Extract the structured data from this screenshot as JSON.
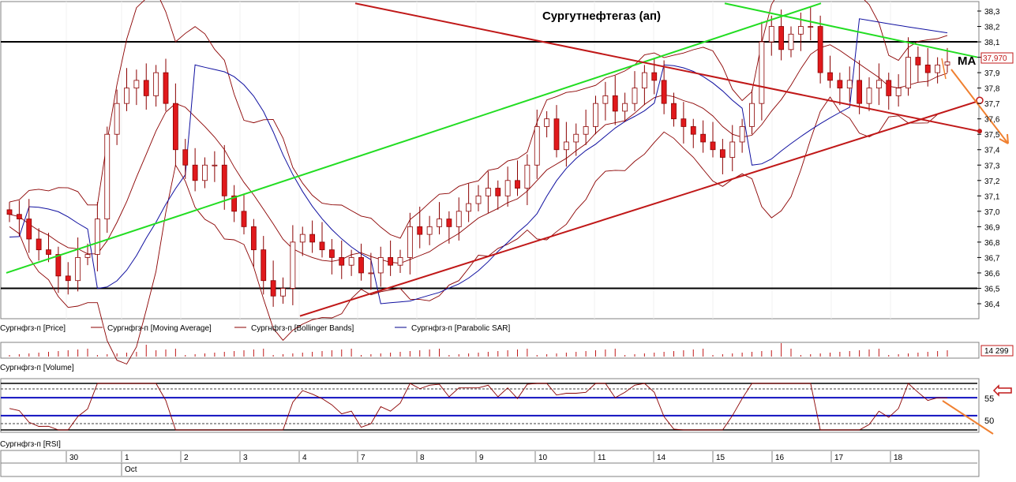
{
  "chart_data": [
    {
      "type": "candlestick",
      "title": "Сургутнефтегаз (ап)",
      "annotation": "MA",
      "price_label": "37,970",
      "y_ticks": [
        "38,3",
        "38,2",
        "38,1",
        "38,0",
        "37,9",
        "37,8",
        "37,7",
        "37,6",
        "37,5",
        "37,4",
        "37,3",
        "37,2",
        "37,1",
        "37,0",
        "36,9",
        "36,8",
        "36,7",
        "36,6",
        "36,5",
        "36,4"
      ],
      "ylim": [
        36.32,
        38.35
      ],
      "legend": [
        {
          "name": "Сургнфгз-п [Price]",
          "color": "#8B0000"
        },
        {
          "name": "Сургнфгз-п [Moving Average]",
          "color": "#8B0000"
        },
        {
          "name": "Сургнфгз-п [Bollinger Bands]",
          "color": "#8B0000"
        },
        {
          "name": "Сургнфгз-п [Parabolic SAR]",
          "color": "#00008B"
        }
      ],
      "horizontal_levels": [
        38.1,
        36.5
      ],
      "ohlc_close_approx": [
        36.98,
        36.95,
        36.82,
        36.75,
        36.72,
        36.58,
        36.55,
        36.7,
        36.72,
        36.95,
        37.5,
        37.7,
        37.8,
        37.85,
        37.75,
        37.9,
        37.7,
        37.4,
        37.3,
        37.2,
        37.3,
        37.3,
        37.1,
        37.0,
        36.9,
        36.75,
        36.55,
        36.45,
        36.5,
        36.8,
        36.85,
        36.8,
        36.75,
        36.7,
        36.65,
        36.7,
        36.6,
        36.6,
        36.7,
        36.65,
        36.7,
        36.9,
        36.85,
        36.9,
        36.95,
        36.9,
        37.0,
        37.05,
        37.1,
        37.15,
        37.1,
        37.2,
        37.15,
        37.3,
        37.55,
        37.6,
        37.4,
        37.45,
        37.5,
        37.55,
        37.7,
        37.75,
        37.65,
        37.7,
        37.8,
        37.9,
        37.85,
        37.7,
        37.6,
        37.55,
        37.5,
        37.45,
        37.4,
        37.35,
        37.45,
        37.55,
        37.7,
        38.1,
        38.2,
        38.05,
        38.15,
        38.2,
        38.2,
        37.9,
        37.85,
        37.8,
        37.85,
        37.7,
        37.8,
        37.85,
        37.75,
        37.8,
        38.0,
        37.95,
        37.9,
        37.95,
        37.97
      ],
      "colors": {
        "bear_candle": "#E0191C",
        "bull_candle": "#FFFFFF",
        "candle_outline": "#8B0000",
        "green_trend": "#22DD22",
        "red_trend": "#C01818",
        "sar": "#1010A0",
        "forecast_arrow": "#F08030",
        "level": "#000000"
      }
    },
    {
      "type": "bar",
      "series_label": "Сургнфгз-п [Volume]",
      "value_label": "14 299",
      "color": "#C01818"
    },
    {
      "type": "line",
      "series_label": "Сургнфгз-п [RSI]",
      "y_ticks": [
        "55",
        "50"
      ],
      "levels": [
        55,
        50
      ],
      "color": "#8B0000"
    }
  ],
  "x_axis": {
    "days": [
      "30",
      "1",
      "2",
      "3",
      "4",
      "7",
      "8",
      "9",
      "10",
      "11",
      "14",
      "15",
      "16",
      "17",
      "18"
    ],
    "month": "Oct"
  }
}
